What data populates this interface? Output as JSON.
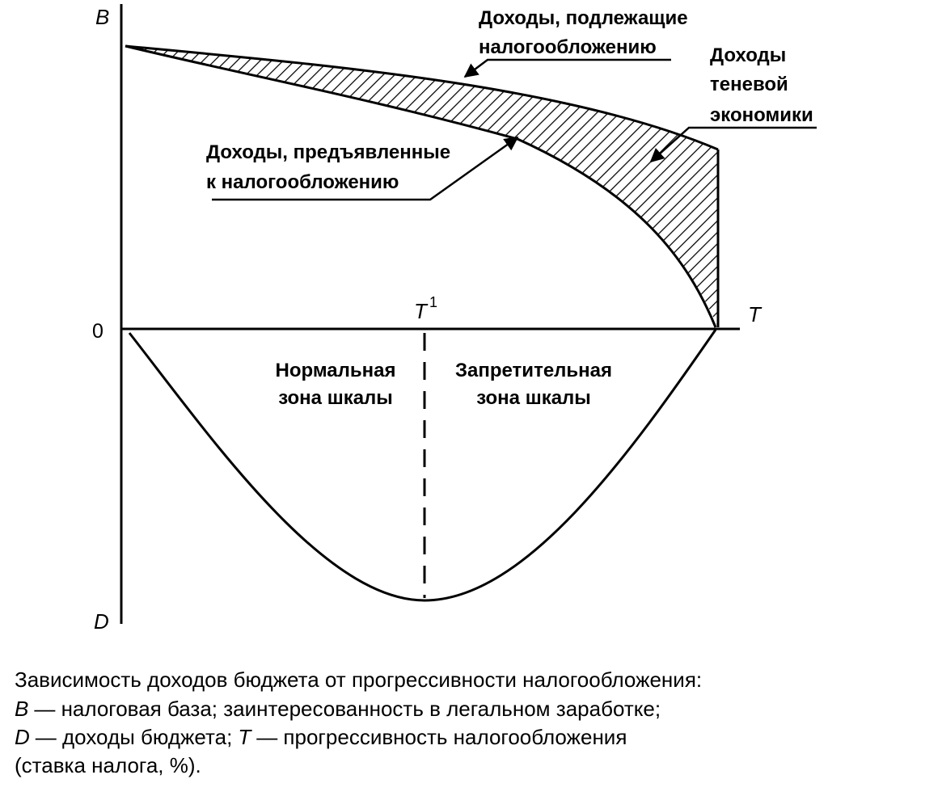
{
  "axes": {
    "y_top": "B",
    "origin": "0",
    "x_end": "T",
    "y_bottom": "D",
    "threshold": "T",
    "threshold_sup": "1"
  },
  "annotations": {
    "taxable": [
      "Доходы, подлежащие",
      "налогообложению"
    ],
    "shadow": [
      "Доходы",
      "теневой",
      "экономики"
    ],
    "declared": [
      "Доходы, предъявленные",
      "к налогообложению"
    ],
    "normal_zone": [
      "Нормальная",
      "зона шкалы"
    ],
    "prohibitive_zone": [
      "Запретительная",
      "зона шкалы"
    ]
  },
  "caption": {
    "lines": [
      [
        "Зависимость доходов бюджета от прогрессивности налогообложения:"
      ],
      [
        "B",
        "— налоговая база; заинтересованность в легальном заработке;"
      ],
      [
        "D",
        "— доходы бюджета;",
        "T",
        "— прогрессивность налогообложения"
      ],
      [
        "(ставка налога, %)."
      ]
    ]
  }
}
